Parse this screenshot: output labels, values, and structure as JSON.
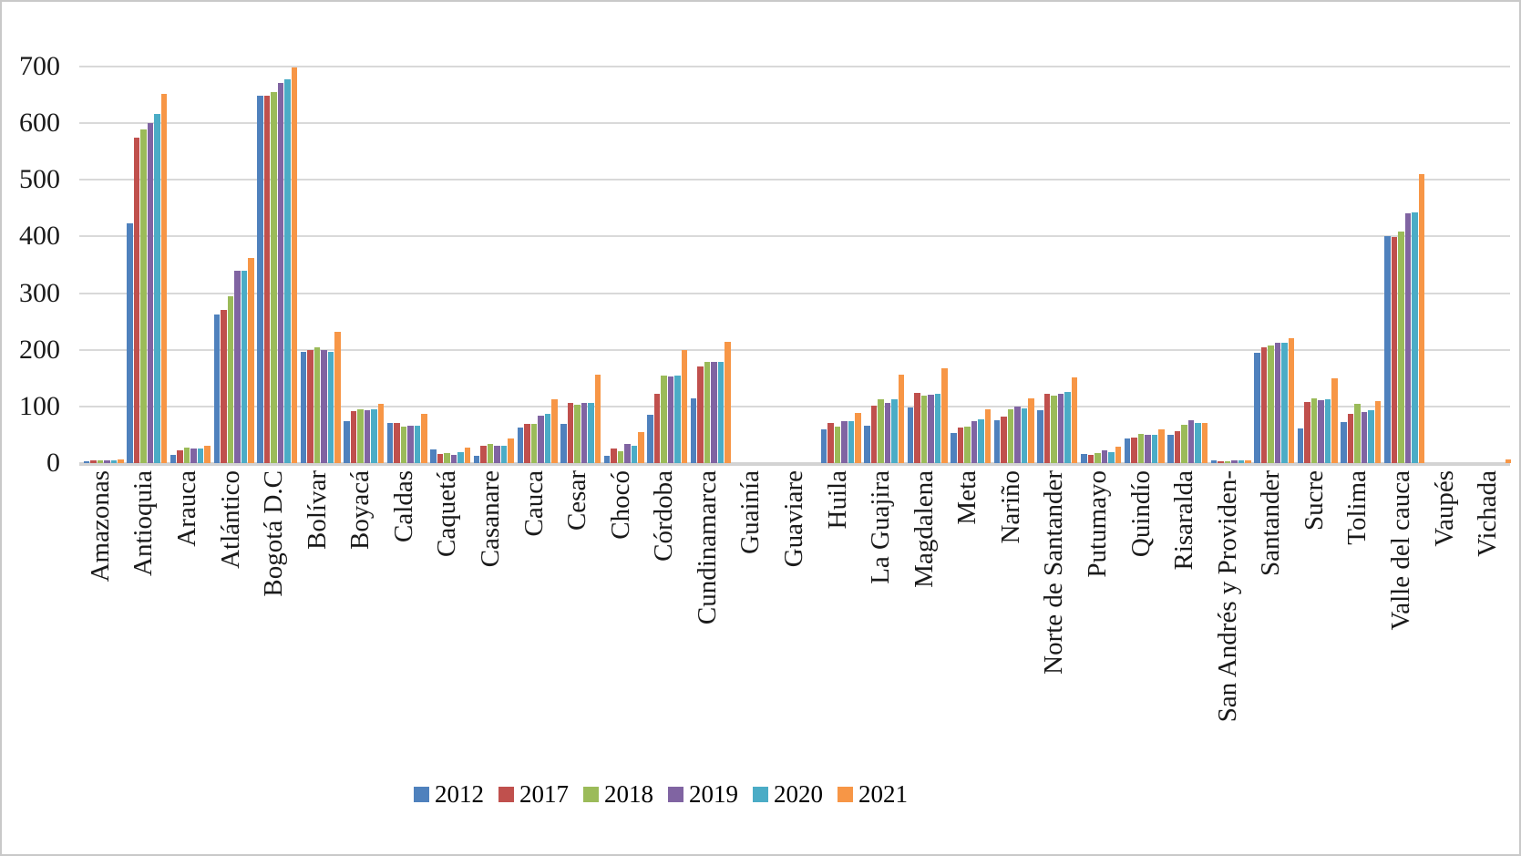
{
  "chart_data": {
    "type": "bar",
    "categories": [
      "Amazonas",
      "Antioquia",
      "Arauca",
      "Atlántico",
      "Bogotá D.C",
      "Bolívar",
      "Boyacá",
      "Caldas",
      "Caquetá",
      "Casanare",
      "Cauca",
      "Cesar",
      "Chocó",
      "Córdoba",
      "Cundinamarca",
      "Guainía",
      "Guaviare",
      "Huila",
      "La Guajira",
      "Magdalena",
      "Meta",
      "Nariño",
      "Norte de Santander",
      "Putumayo",
      "Quindío",
      "Risaralda",
      "San Andrés y Providen-",
      "Santander",
      "Sucre",
      "Tolima",
      "Valle del cauca",
      "Vaupés",
      "Vichada"
    ],
    "series": [
      {
        "name": "2012",
        "color": "#4F81BD",
        "values": [
          4,
          424,
          14,
          262,
          648,
          196,
          74,
          71,
          24,
          13,
          62,
          70,
          13,
          85,
          115,
          0,
          0,
          60,
          66,
          98,
          53,
          75,
          93,
          16,
          43,
          50,
          5,
          194,
          61,
          73,
          400,
          0,
          0
        ]
      },
      {
        "name": "2017",
        "color": "#C0504D",
        "values": [
          5,
          574,
          23,
          271,
          648,
          200,
          91,
          71,
          16,
          31,
          70,
          107,
          26,
          123,
          171,
          0,
          0,
          71,
          102,
          124,
          62,
          82,
          122,
          14,
          45,
          57,
          2,
          204,
          108,
          87,
          399,
          0,
          0
        ]
      },
      {
        "name": "2018",
        "color": "#9BBB59",
        "values": [
          5,
          589,
          27,
          295,
          655,
          205,
          95,
          65,
          18,
          34,
          70,
          103,
          21,
          154,
          178,
          0,
          0,
          65,
          112,
          119,
          65,
          95,
          119,
          18,
          51,
          68,
          2,
          208,
          115,
          104,
          408,
          0,
          0
        ]
      },
      {
        "name": "2019",
        "color": "#8064A2",
        "values": [
          5,
          601,
          25,
          340,
          671,
          199,
          94,
          66,
          15,
          30,
          83,
          107,
          34,
          153,
          178,
          0,
          0,
          74,
          106,
          120,
          74,
          100,
          123,
          22,
          50,
          75,
          5,
          213,
          111,
          90,
          441,
          0,
          0
        ]
      },
      {
        "name": "2020",
        "color": "#4BACC6",
        "values": [
          5,
          616,
          25,
          340,
          678,
          197,
          95,
          66,
          20,
          31,
          87,
          106,
          30,
          154,
          178,
          0,
          0,
          74,
          112,
          123,
          77,
          97,
          125,
          20,
          50,
          71,
          5,
          213,
          112,
          94,
          443,
          0,
          0
        ]
      },
      {
        "name": "2021",
        "color": "#F79646",
        "values": [
          6,
          651,
          31,
          362,
          699,
          232,
          105,
          87,
          27,
          44,
          112,
          156,
          55,
          199,
          214,
          0,
          0,
          88,
          156,
          167,
          95,
          114,
          151,
          29,
          60,
          71,
          5,
          221,
          149,
          109,
          510,
          0,
          6
        ]
      }
    ],
    "ylim": [
      0,
      700
    ],
    "yticks": [
      0,
      100,
      200,
      300,
      400,
      500,
      600,
      700
    ],
    "xlabel": "",
    "ylabel": "",
    "grid": true,
    "legend_position": "bottom",
    "legend_labels": [
      "2012",
      "2017",
      "2018",
      "2019",
      "2020",
      "2021"
    ]
  },
  "style": {
    "grid_color": "#d9d9d9",
    "axis_color": "#d3d3d3",
    "text_color": "#1a1a1a",
    "background": "#ffffff"
  }
}
